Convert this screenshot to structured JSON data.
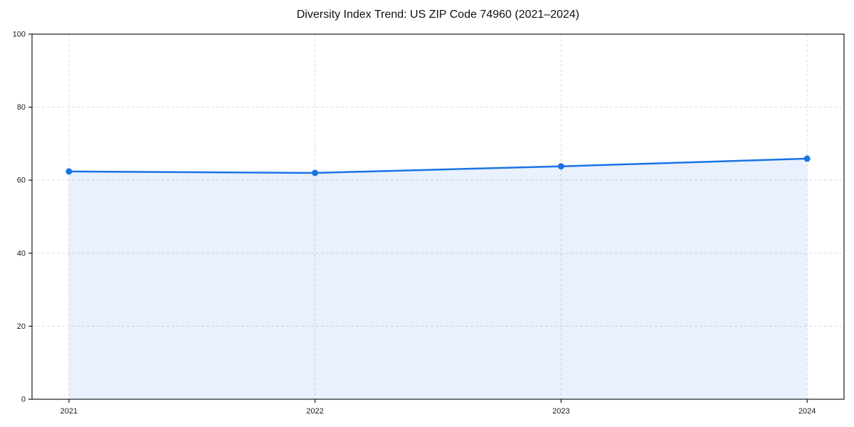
{
  "page": {
    "background_color": "#ffffff"
  },
  "chart_data": {
    "type": "line",
    "title": "Diversity Index Trend: US ZIP Code 74960 (2021–2024)",
    "x": [
      2021,
      2022,
      2023,
      2024
    ],
    "series": [
      {
        "name": "Diversity Index",
        "values": [
          62.4,
          62.0,
          63.8,
          65.9
        ]
      }
    ],
    "xlabel": "",
    "ylabel": "",
    "xlim": [
      2020.85,
      2024.15
    ],
    "ylim": [
      0,
      100
    ],
    "xticks": [
      2021,
      2022,
      2023,
      2024
    ],
    "xtick_labels": [
      "2021",
      "2022",
      "2023",
      "2024"
    ],
    "yticks": [
      0,
      20,
      40,
      60,
      80,
      100
    ],
    "ytick_labels": [
      "0",
      "20",
      "40",
      "60",
      "80",
      "100"
    ],
    "grid": true,
    "grid_style": "dashed",
    "legend_position": "none",
    "area_fill": true,
    "marker_shape": "circle",
    "line_color": "#1a73e8",
    "fill_opacity": 0.1,
    "grid_color": "#dcdcdc",
    "axis_color": "#1a1a1a",
    "text_color": "#1a1a1a",
    "title_color": "#111111"
  }
}
